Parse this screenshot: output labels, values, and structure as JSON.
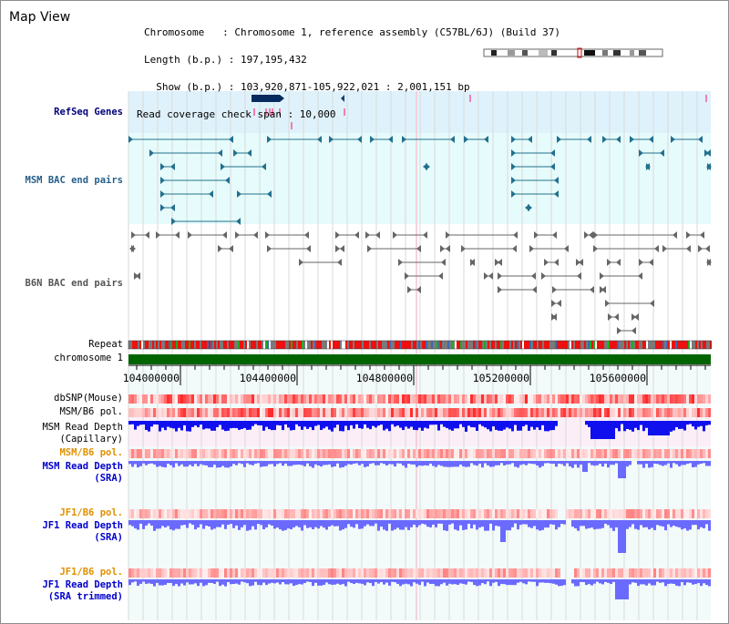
{
  "header": {
    "title": "Map View",
    "info_lines": [
      "Chromosome   : Chromosome 1, reference assembly (C57BL/6J) (Build 37)",
      "Length (b.p.) : 197,195,432",
      "  Show (b.p.) : 103,920,871-105,922,021 : 2,001,151 bp",
      "Read coverage check span : 10,000"
    ]
  },
  "tracks": {
    "refseq": "RefSeq Genes",
    "msm_bac": "MSM BAC end pairs",
    "b6n_bac": "B6N BAC end pairs",
    "repeat": "Repeat",
    "chromosome": "chromosome 1",
    "dbsnp": "dbSNP(Mouse)",
    "msm_b6_pol_1": "MSM/B6 pol.",
    "msm_depth_cap_1": "MSM Read Depth",
    "msm_depth_cap_2": "(Capillary)",
    "msm_b6_pol_2": "MSM/B6 pol.",
    "msm_depth_sra_1": "MSM Read Depth",
    "msm_depth_sra_2": "(SRA)",
    "jf1_b6_pol_1": "JF1/B6 pol.",
    "jf1_depth_sra_1": "JF1 Read Depth",
    "jf1_depth_sra_2": "(SRA)",
    "jf1_b6_pol_2": "JF1/B6 pol.",
    "jf1_depth_trim_1": "JF1 Read Depth",
    "jf1_depth_trim_2": "(SRA trimmed)"
  },
  "axis": {
    "ticks": [
      "104000000",
      "104400000",
      "104800000",
      "105200000",
      "105600000"
    ]
  },
  "colors": {
    "refseq_bg": "#dff2fb",
    "msm_bac_bg": "#e6fbfb",
    "depth_bg": "#f2fbfa",
    "chromosome_bar": "#006400",
    "snp_red": "#ff1010",
    "depth_blue": "#1010ee",
    "depth_light_blue": "#6a6aff",
    "pol_orange": "#e09000"
  }
}
